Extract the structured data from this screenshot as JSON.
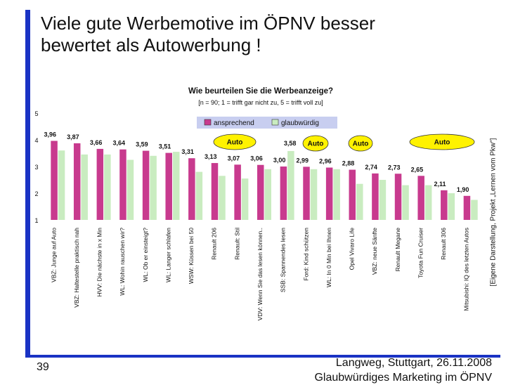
{
  "slide": {
    "title_line1": "Viele gute Werbemotive im ÖPNV besser",
    "title_line2": "bewertet als Autowerbung !",
    "page_number": "39",
    "footer_line1": "Langweg, Stuttgart, 26.11.2008",
    "footer_line2": "Glaubwürdiges Marketing im ÖPNV",
    "side_note": "[Eigene Darstellung, Projekt „Lernen vom Pkw\"]"
  },
  "colors": {
    "accent_blue": "#1a33c4",
    "series_ansprechend": "#c83a8e",
    "series_glaubwuerdig": "#c9ecc0",
    "auto_badge": "#fff200",
    "legend_bg": "#c8cef0"
  },
  "chart_data": {
    "type": "bar",
    "title": "Wie beurteilen Sie die Werbeanzeige?",
    "subtitle": "[n = 90; 1 = trifft gar nicht zu, 5 = trifft voll zu]",
    "xlabel": "",
    "ylabel": "",
    "ylim": [
      1,
      5
    ],
    "yticks": [
      1,
      2,
      3,
      4,
      5
    ],
    "grid": false,
    "legend_position": "top",
    "categories": [
      "VBZ: Junge auf Auto",
      "VBZ: Haltestelle praktisch nah",
      "HVV: Die nächste in x Min",
      "WL: Wohin rauschen wir?",
      "WL: Ob er einsteigt?",
      "WL: Langer schlafen",
      "WSW: Küssen bei 50",
      "Renault 206",
      "Renault: Stil",
      "VDV: Wenn Sie das lesen können..",
      "SSB: Spannendes lesen",
      "Ford: Kind schützen",
      "WL: In 0 Min bei Ihnen",
      "Opel Vivaro Life",
      "VBZ: neue Sänfte",
      "Renault Megane",
      "Toyota Fun Cruiser",
      "Renault 306",
      "Mitsubishi: IQ des letzten Autos"
    ],
    "series": [
      {
        "name": "ansprechend",
        "values": [
          3.96,
          3.87,
          3.66,
          3.64,
          3.59,
          3.51,
          3.31,
          3.13,
          3.07,
          3.06,
          3.0,
          2.99,
          2.96,
          2.88,
          2.74,
          2.73,
          2.65,
          2.11,
          1.9
        ]
      },
      {
        "name": "glaubwürdig",
        "values": [
          3.6,
          3.45,
          3.45,
          3.25,
          3.4,
          3.55,
          2.8,
          2.65,
          2.55,
          2.9,
          3.58,
          2.9,
          2.9,
          2.35,
          2.5,
          2.3,
          2.3,
          2.0,
          1.75
        ]
      }
    ],
    "data_labels": [
      "3,96",
      "3,87",
      "3,66",
      "3,64",
      "3,59",
      "3,51",
      "3,31",
      "3,13",
      "3,07",
      "3,06",
      "3,00",
      "2,99",
      "2,96",
      "2,88",
      "2,74",
      "2,73",
      "2,65",
      "2,11",
      "1,90"
    ],
    "extra_label": "3,58",
    "auto_label": "Auto"
  }
}
